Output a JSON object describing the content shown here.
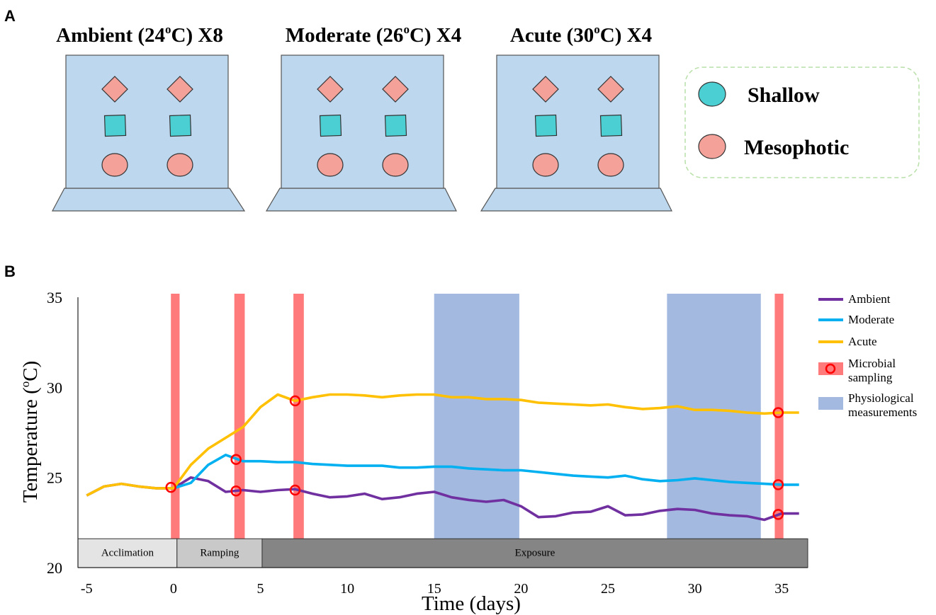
{
  "panels": {
    "a_label": "A",
    "b_label": "B"
  },
  "panel_a": {
    "tanks": [
      {
        "title_pre": "Ambient (24",
        "title_sup": "o",
        "title_post": "C) X8"
      },
      {
        "title_pre": "Moderate (26",
        "title_sup": "o",
        "title_post": "C) X4"
      },
      {
        "title_pre": "Acute (30",
        "title_sup": "o",
        "title_post": "C) X4"
      }
    ],
    "legend": {
      "shallow": "Shallow",
      "mesophotic": "Mesophotic"
    },
    "colors": {
      "tank_fill": "#bdd7ee",
      "shallow": "#4bcfd3",
      "mesophotic": "#f4a19a",
      "legend_border": "#b8e0a8"
    }
  },
  "chart_data": {
    "type": "line",
    "xlabel": "Time (days)",
    "ylabel_pre": "Temperature (",
    "ylabel_sup": "o",
    "ylabel_post": "C)",
    "xlim": [
      -5.5,
      36.5
    ],
    "ylim": [
      20,
      35
    ],
    "xticks": [
      "-5",
      "0",
      "5",
      "10",
      "15",
      "20",
      "25",
      "30",
      "35"
    ],
    "yticks": [
      "20",
      "25",
      "30",
      "35"
    ],
    "series": [
      {
        "name": "Ambient",
        "color": "#7030a0",
        "x": [
          -5,
          -4,
          -3,
          -2,
          -1,
          0,
          1,
          2,
          3,
          4,
          5,
          6,
          7,
          8,
          9,
          10,
          11,
          12,
          13,
          14,
          15,
          16,
          17,
          18,
          19,
          20,
          21,
          22,
          23,
          24,
          25,
          26,
          27,
          28,
          29,
          30,
          31,
          32,
          33,
          34,
          35,
          36
        ],
        "y": [
          24.0,
          24.5,
          24.65,
          24.5,
          24.4,
          24.4,
          25.0,
          24.8,
          24.2,
          24.3,
          24.2,
          24.3,
          24.35,
          24.1,
          23.9,
          23.95,
          24.1,
          23.8,
          23.9,
          24.1,
          24.2,
          23.9,
          23.75,
          23.65,
          23.75,
          23.4,
          22.8,
          22.85,
          23.05,
          23.1,
          23.4,
          22.9,
          22.95,
          23.15,
          23.25,
          23.2,
          23.0,
          22.9,
          22.85,
          22.65,
          23.0,
          23.0
        ]
      },
      {
        "name": "Moderate",
        "color": "#00b0f0",
        "x": [
          0,
          1,
          2,
          3,
          4,
          5,
          6,
          7,
          8,
          9,
          10,
          11,
          12,
          13,
          14,
          15,
          16,
          17,
          18,
          19,
          20,
          21,
          22,
          23,
          24,
          25,
          26,
          27,
          28,
          29,
          30,
          31,
          32,
          33,
          34,
          35,
          36
        ],
        "y": [
          24.4,
          24.7,
          25.7,
          26.25,
          25.9,
          25.9,
          25.85,
          25.85,
          25.75,
          25.7,
          25.65,
          25.65,
          25.65,
          25.55,
          25.55,
          25.6,
          25.6,
          25.5,
          25.45,
          25.4,
          25.4,
          25.3,
          25.2,
          25.1,
          25.05,
          25.0,
          25.1,
          24.9,
          24.8,
          24.85,
          24.95,
          24.85,
          24.75,
          24.7,
          24.65,
          24.6,
          24.6
        ]
      },
      {
        "name": "Acute",
        "color": "#ffc000",
        "x": [
          -5,
          -4,
          -3,
          -2,
          -1,
          0,
          1,
          2,
          3,
          4,
          5,
          6,
          7,
          8,
          9,
          10,
          11,
          12,
          13,
          14,
          15,
          16,
          17,
          18,
          19,
          20,
          21,
          22,
          23,
          24,
          25,
          26,
          27,
          28,
          29,
          30,
          31,
          32,
          33,
          34,
          35,
          36
        ],
        "y": [
          24.0,
          24.5,
          24.65,
          24.5,
          24.4,
          24.4,
          25.7,
          26.6,
          27.2,
          27.8,
          28.9,
          29.6,
          29.25,
          29.45,
          29.6,
          29.6,
          29.55,
          29.45,
          29.55,
          29.6,
          29.6,
          29.45,
          29.45,
          29.35,
          29.35,
          29.3,
          29.15,
          29.1,
          29.05,
          29.0,
          29.05,
          28.9,
          28.8,
          28.85,
          28.95,
          28.75,
          28.75,
          28.7,
          28.6,
          28.55,
          28.6,
          28.6
        ]
      }
    ],
    "red_bands": [
      {
        "x0": -0.15,
        "x1": 0.35
      },
      {
        "x0": 3.5,
        "x1": 4.1
      },
      {
        "x0": 6.9,
        "x1": 7.5
      },
      {
        "x0": 34.6,
        "x1": 35.1
      }
    ],
    "blue_bands": [
      {
        "x0": 15.0,
        "x1": 19.9
      },
      {
        "x0": 28.4,
        "x1": 33.8
      }
    ],
    "sampling_points": [
      {
        "x": -0.15,
        "y": 24.45
      },
      {
        "x": 3.6,
        "y": 26.0
      },
      {
        "x": 3.6,
        "y": 24.25
      },
      {
        "x": 7.0,
        "y": 29.25
      },
      {
        "x": 7.0,
        "y": 24.3
      },
      {
        "x": 34.8,
        "y": 28.6
      },
      {
        "x": 34.8,
        "y": 24.6
      },
      {
        "x": 34.8,
        "y": 22.95
      }
    ],
    "phases": [
      {
        "label": "Acclimation",
        "x0": -5.5,
        "x1": 0.2,
        "color": "#e4e4e4"
      },
      {
        "label": "Ramping",
        "x0": 0.2,
        "x1": 5.1,
        "color": "#c9c9c9"
      },
      {
        "label": "Exposure",
        "x0": 5.1,
        "x1": 36.5,
        "color": "#858585"
      }
    ],
    "phase_band_y": [
      20.0,
      21.6
    ],
    "legend": [
      {
        "label": "Ambient",
        "kind": "line",
        "color": "#7030a0"
      },
      {
        "label": "Moderate",
        "kind": "line",
        "color": "#00b0f0"
      },
      {
        "label": "Acute",
        "kind": "line",
        "color": "#ffc000"
      },
      {
        "label": "Microbial sampling",
        "kind": "sampling",
        "color": "#ff7b7b"
      },
      {
        "label": "Physiological measurements",
        "kind": "patch",
        "color": "#a3b9e0"
      }
    ],
    "band_colors": {
      "red": "#ff7b7b",
      "blue": "#a3b9e0",
      "marker": "#ff0000"
    }
  }
}
